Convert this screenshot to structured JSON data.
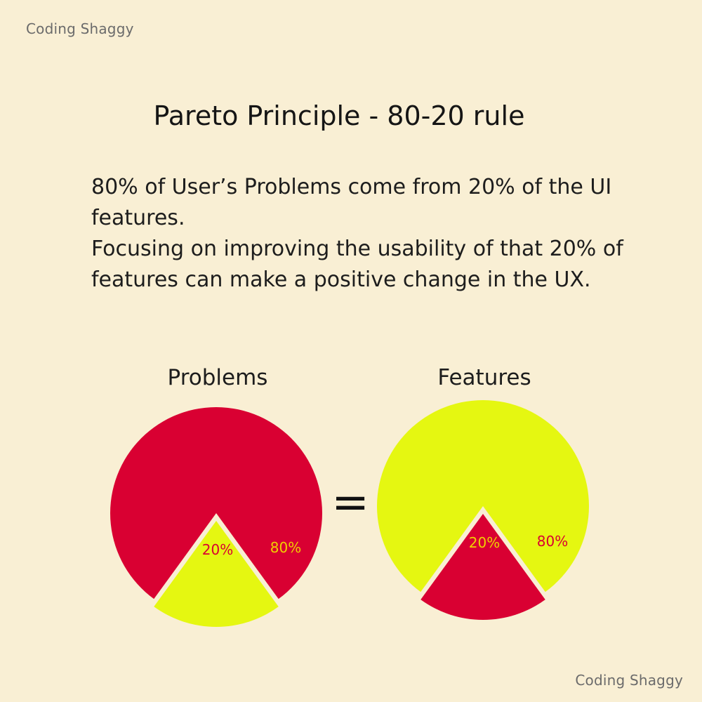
{
  "brand": "Coding Shaggy",
  "title": "Pareto Principle - 80-20 rule",
  "description": [
    "80% of User’s Problems come from 20% of the UI features.",
    "Focusing on improving the usability of that 20% of features can make a positive change in the UX."
  ],
  "equals": "=",
  "colors": {
    "red": "#d90032",
    "yellow": "#e5f711",
    "background": "#f9efd4"
  },
  "chart_data": [
    {
      "type": "pie",
      "title": "Problems",
      "slices": [
        {
          "label": "80%",
          "value": 80,
          "color": "#d90032"
        },
        {
          "label": "20%",
          "value": 20,
          "color": "#e5f711"
        }
      ]
    },
    {
      "type": "pie",
      "title": "Features",
      "slices": [
        {
          "label": "80%",
          "value": 80,
          "color": "#e5f711"
        },
        {
          "label": "20%",
          "value": 20,
          "color": "#d90032"
        }
      ]
    }
  ]
}
